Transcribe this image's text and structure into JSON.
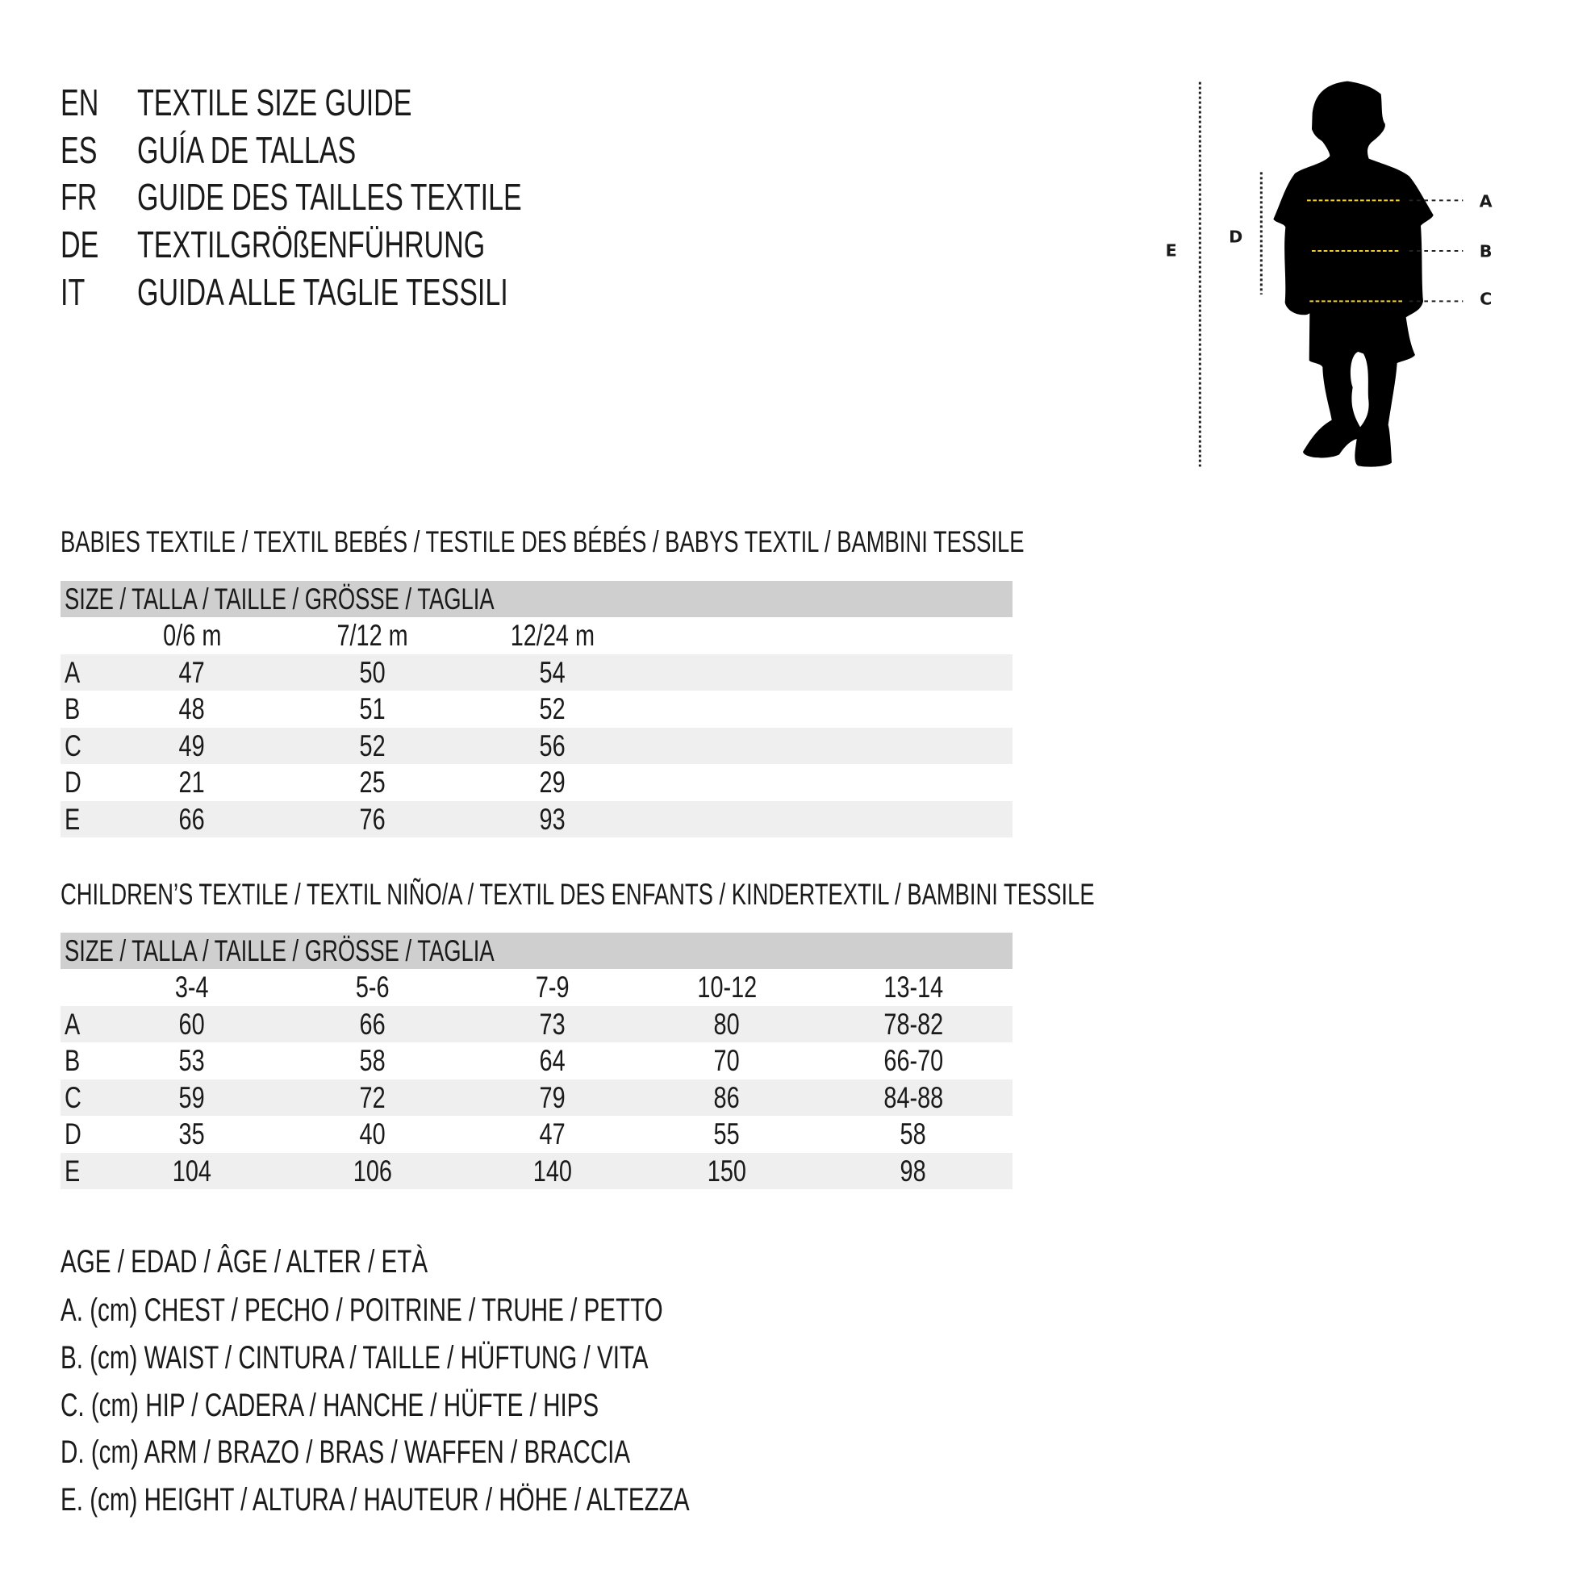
{
  "header": {
    "lines": [
      {
        "code": "EN",
        "text": "TEXTILE SIZE GUIDE"
      },
      {
        "code": "ES",
        "text": "GUÍA DE TALLAS"
      },
      {
        "code": "FR",
        "text": "GUIDE DES TAILLES TEXTILE"
      },
      {
        "code": "DE",
        "text": "TEXTILGRÖßENFÜHRUNG"
      },
      {
        "code": "IT",
        "text": "GUIDA ALLE TAGLIE TESSILI"
      }
    ]
  },
  "figure": {
    "labels": {
      "a": "A",
      "b": "B",
      "c": "C",
      "d": "D",
      "e": "E"
    },
    "measure_line_color": "#f2d02c",
    "silhouette_color": "#000000"
  },
  "babies": {
    "title": "BABIES TEXTILE / TEXTIL BEBÉS / TESTILE DES BÉBÉS / BABYS TEXTIL / BAMBINI TESSILE",
    "size_header": "SIZE / TALLA / TAILLE / GRÖSSE / TAGLIA",
    "columns": [
      "0/6 m",
      "7/12 m",
      "12/24 m"
    ],
    "rows": [
      {
        "label": "A",
        "values": [
          "47",
          "50",
          "54"
        ]
      },
      {
        "label": "B",
        "values": [
          "48",
          "51",
          "52"
        ]
      },
      {
        "label": "C",
        "values": [
          "49",
          "52",
          "56"
        ]
      },
      {
        "label": "D",
        "values": [
          "21",
          "25",
          "29"
        ]
      },
      {
        "label": "E",
        "values": [
          "66",
          "76",
          "93"
        ]
      }
    ]
  },
  "children": {
    "title": "CHILDREN’S TEXTILE / TEXTIL NIÑO/A / TEXTIL DES ENFANTS / KINDERTEXTIL / BAMBINI TESSILE",
    "size_header": "SIZE / TALLA / TAILLE / GRÖSSE / TAGLIA",
    "columns": [
      "3-4",
      "5-6",
      "7-9",
      "10-12",
      "13-14"
    ],
    "rows": [
      {
        "label": "A",
        "values": [
          "60",
          "66",
          "73",
          "80",
          "78-82"
        ]
      },
      {
        "label": "B",
        "values": [
          "53",
          "58",
          "64",
          "70",
          "66-70"
        ]
      },
      {
        "label": "C",
        "values": [
          "59",
          "72",
          "79",
          "86",
          "84-88"
        ]
      },
      {
        "label": "D",
        "values": [
          "35",
          "40",
          "47",
          "55",
          "58"
        ]
      },
      {
        "label": "E",
        "values": [
          "104",
          "106",
          "140",
          "150",
          "98"
        ]
      }
    ]
  },
  "legend": [
    "AGE / EDAD / ÂGE / ALTER / ETÀ",
    "A. (cm) CHEST / PECHO / POITRINE / TRUHE / PETTO",
    "B. (cm) WAIST / CINTURA / TAILLE / HÜFTUNG / VITA",
    "C. (cm) HIP / CADERA / HANCHE / HÜFTE / HIPS",
    "D. (cm) ARM / BRAZO / BRAS / WAFFEN / BRACCIA",
    "E. (cm) HEIGHT / ALTURA / HAUTEUR / HÖHE / ALTEZZA"
  ]
}
